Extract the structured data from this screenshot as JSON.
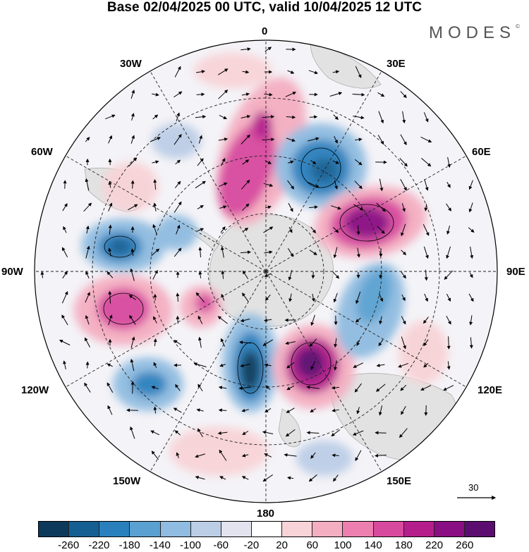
{
  "header": {
    "title": "Base 02/04/2025 00 UTC, valid 10/04/2025 12 UTC",
    "brand": "MODES",
    "brand_mark": "©"
  },
  "map": {
    "projection": "south-polar-stereographic",
    "longitude_labels": {
      "lon_0": "0",
      "lon_30e": "30E",
      "lon_60e": "60E",
      "lon_90e": "90E",
      "lon_120e": "120E",
      "lon_150e": "150E",
      "lon_180": "180",
      "lon_150w": "150W",
      "lon_120w": "120W",
      "lon_90w": "90W",
      "lon_60w": "60W",
      "lon_30w": "30W"
    },
    "land_color": "#e2e2e2",
    "grid_style": "dashed",
    "wind_vectors": true
  },
  "legend": {
    "reference_vector_label": "30",
    "colorbar": {
      "ticks": [
        "-260",
        "-220",
        "-180",
        "-140",
        "-100",
        "-60",
        "-20",
        "20",
        "60",
        "100",
        "140",
        "180",
        "220",
        "260"
      ],
      "colors": [
        "#0d3a5b",
        "#155f93",
        "#2a80bd",
        "#5aa1d2",
        "#8fbce0",
        "#bccde6",
        "#e3e3ef",
        "#ffffff",
        "#f8d3d7",
        "#f4aec1",
        "#ec7fb0",
        "#d84a9e",
        "#b51f8c",
        "#8a0f83",
        "#5b0e70"
      ]
    }
  }
}
